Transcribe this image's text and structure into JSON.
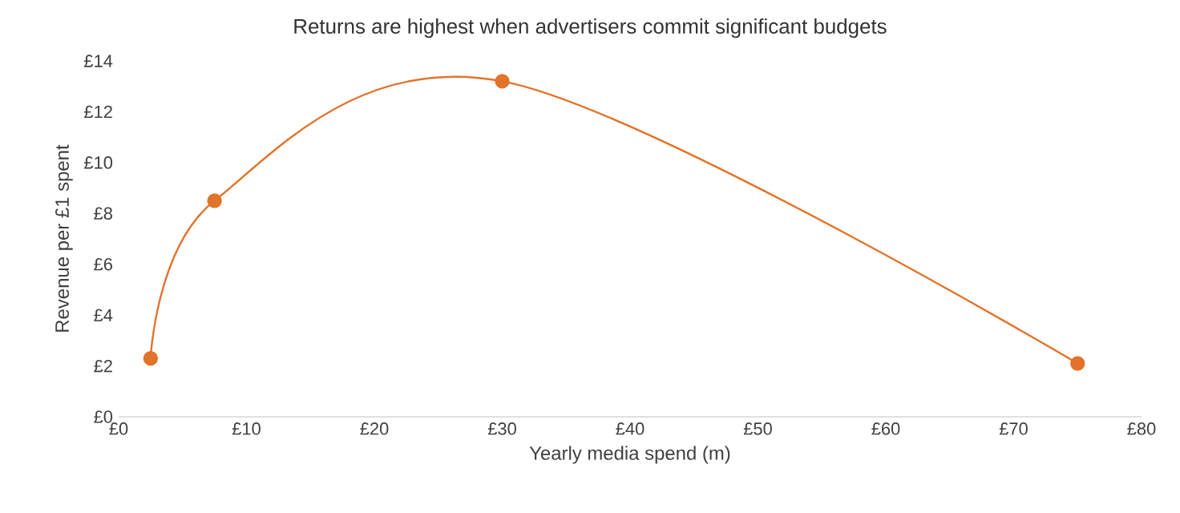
{
  "chart_data": {
    "type": "line",
    "title": "Returns are highest when advertisers commit significant budgets",
    "xlabel": "Yearly media spend (m)",
    "ylabel": "Revenue per £1 spent",
    "x": [
      2.5,
      7.5,
      30,
      75
    ],
    "series": [
      {
        "color": "#e3732a",
        "values": [
          2.3,
          8.5,
          13.2,
          2.1
        ]
      }
    ],
    "xlim": [
      0,
      80
    ],
    "ylim": [
      0,
      14
    ],
    "xticks": [
      {
        "value": 0,
        "label": "£0"
      },
      {
        "value": 10,
        "label": "£10"
      },
      {
        "value": 20,
        "label": "£20"
      },
      {
        "value": 30,
        "label": "£30"
      },
      {
        "value": 40,
        "label": "£40"
      },
      {
        "value": 50,
        "label": "£50"
      },
      {
        "value": 60,
        "label": "£60"
      },
      {
        "value": 70,
        "label": "£70"
      },
      {
        "value": 80,
        "label": "£80"
      }
    ],
    "yticks": [
      {
        "value": 0,
        "label": "£0"
      },
      {
        "value": 2,
        "label": "£2"
      },
      {
        "value": 4,
        "label": "£4"
      },
      {
        "value": 6,
        "label": "£6"
      },
      {
        "value": 8,
        "label": "£8"
      },
      {
        "value": 10,
        "label": "£10"
      },
      {
        "value": 12,
        "label": "£12"
      },
      {
        "value": 14,
        "label": "£14"
      }
    ],
    "grid": false,
    "marker": "circle",
    "line_style": "solid"
  }
}
